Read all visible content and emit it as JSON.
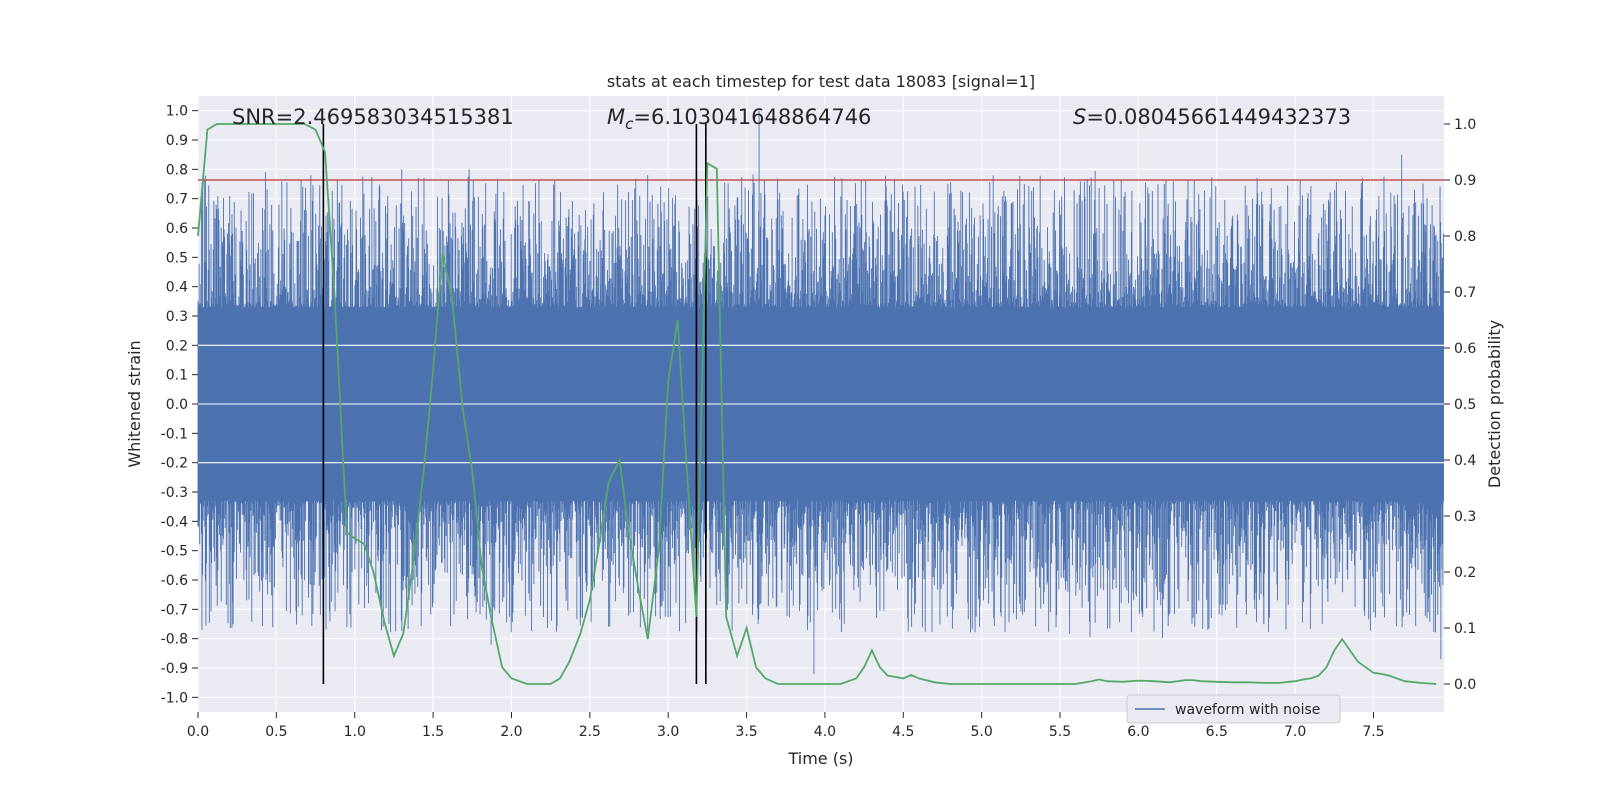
{
  "chart_data": {
    "type": "line",
    "title": "stats at each timestep for test data 18083 [signal=1]",
    "xlabel": "Time (s)",
    "ylabel_left": "Whitened strain",
    "ylabel_right": "Detection probability",
    "xlim": [
      0,
      7.95
    ],
    "ylim_left": [
      -1.05,
      1.05
    ],
    "ylim_right": [
      -0.05,
      1.05
    ],
    "x_ticks": [
      "0.0",
      "0.5",
      "1.0",
      "1.5",
      "2.0",
      "2.5",
      "3.0",
      "3.5",
      "4.0",
      "4.5",
      "5.0",
      "5.5",
      "6.0",
      "6.5",
      "7.0",
      "7.5"
    ],
    "x_tick_values": [
      0,
      0.5,
      1,
      1.5,
      2,
      2.5,
      3,
      3.5,
      4,
      4.5,
      5,
      5.5,
      6,
      6.5,
      7,
      7.5
    ],
    "y_ticks_left": [
      "1.0",
      "0.9",
      "0.8",
      "0.7",
      "0.6",
      "0.5",
      "0.4",
      "0.3",
      "0.2",
      "0.1",
      "0.0",
      "-0.1",
      "-0.2",
      "-0.3",
      "-0.4",
      "-0.5",
      "-0.6",
      "-0.7",
      "-0.8",
      "-0.9",
      "-1.0"
    ],
    "y_tick_values_left": [
      1.0,
      0.9,
      0.8,
      0.7,
      0.6,
      0.5,
      0.4,
      0.3,
      0.2,
      0.1,
      0.0,
      -0.1,
      -0.2,
      -0.3,
      -0.4,
      -0.5,
      -0.6,
      -0.7,
      -0.8,
      -0.9,
      -1.0
    ],
    "y_ticks_right": [
      "1.0",
      "0.9",
      "0.8",
      "0.7",
      "0.6",
      "0.5",
      "0.4",
      "0.3",
      "0.2",
      "0.1",
      "0.0"
    ],
    "y_tick_values_right": [
      1.0,
      0.9,
      0.8,
      0.7,
      0.6,
      0.5,
      0.4,
      0.3,
      0.2,
      0.1,
      0.0
    ],
    "annotations": {
      "snr": "SNR=2.469583034515381",
      "mc_symbol": "M",
      "mc_sub": "c",
      "mc_value": "=6.103041648864746",
      "s_symbol": "S",
      "s_value": "=0.08045661449432373"
    },
    "legend": {
      "label": "waveform with noise",
      "position": "lower-right"
    },
    "threshold_line": {
      "value": 0.9,
      "axis": "right",
      "color": "#c44e52"
    },
    "vertical_lines": [
      0.8,
      3.18,
      3.24
    ],
    "waveform": {
      "name": "waveform with noise",
      "color": "#4c72b0",
      "duration": 7.95,
      "envelope_inner": 0.33,
      "peak_max": 1.0,
      "peak_min": -0.92
    },
    "detection_probability": {
      "color": "#55a868",
      "x": [
        0.0,
        0.06,
        0.12,
        0.2,
        0.3,
        0.4,
        0.5,
        0.6,
        0.68,
        0.75,
        0.81,
        0.87,
        0.95,
        1.0,
        1.06,
        1.12,
        1.19,
        1.25,
        1.31,
        1.37,
        1.44,
        1.5,
        1.56,
        1.62,
        1.69,
        1.75,
        1.81,
        1.87,
        1.94,
        2.0,
        2.1,
        2.2,
        2.25,
        2.31,
        2.37,
        2.44,
        2.5,
        2.56,
        2.62,
        2.69,
        2.75,
        2.81,
        2.87,
        2.94,
        3.0,
        3.06,
        3.12,
        3.18,
        3.25,
        3.31,
        3.37,
        3.44,
        3.5,
        3.56,
        3.62,
        3.7,
        3.8,
        3.9,
        4.0,
        4.1,
        4.15,
        4.2,
        4.25,
        4.3,
        4.35,
        4.4,
        4.5,
        4.55,
        4.6,
        4.7,
        4.8,
        5.0,
        5.2,
        5.4,
        5.6,
        5.7,
        5.75,
        5.8,
        5.9,
        6.0,
        6.1,
        6.2,
        6.3,
        6.35,
        6.4,
        6.5,
        6.6,
        6.7,
        6.8,
        6.9,
        7.0,
        7.05,
        7.1,
        7.15,
        7.2,
        7.25,
        7.3,
        7.35,
        7.4,
        7.45,
        7.5,
        7.55,
        7.6,
        7.7,
        7.8,
        7.9
      ],
      "y": [
        0.8,
        0.99,
        1.0,
        1.0,
        1.0,
        1.0,
        1.0,
        1.0,
        1.0,
        0.99,
        0.95,
        0.7,
        0.27,
        0.26,
        0.25,
        0.2,
        0.11,
        0.05,
        0.09,
        0.21,
        0.38,
        0.56,
        0.77,
        0.69,
        0.49,
        0.38,
        0.21,
        0.12,
        0.03,
        0.01,
        0.0,
        0.0,
        0.0,
        0.01,
        0.04,
        0.09,
        0.15,
        0.25,
        0.36,
        0.4,
        0.27,
        0.17,
        0.08,
        0.24,
        0.54,
        0.65,
        0.38,
        0.12,
        0.93,
        0.92,
        0.12,
        0.05,
        0.1,
        0.03,
        0.01,
        0.0,
        0.0,
        0.0,
        0.0,
        0.0,
        0.005,
        0.01,
        0.03,
        0.06,
        0.03,
        0.015,
        0.01,
        0.016,
        0.01,
        0.003,
        0.0,
        0.0,
        0.0,
        0.0,
        0.0,
        0.005,
        0.008,
        0.005,
        0.004,
        0.006,
        0.005,
        0.003,
        0.007,
        0.007,
        0.005,
        0.004,
        0.003,
        0.003,
        0.002,
        0.002,
        0.005,
        0.008,
        0.01,
        0.015,
        0.03,
        0.06,
        0.08,
        0.06,
        0.04,
        0.03,
        0.02,
        0.018,
        0.015,
        0.005,
        0.002,
        0.0
      ]
    }
  }
}
